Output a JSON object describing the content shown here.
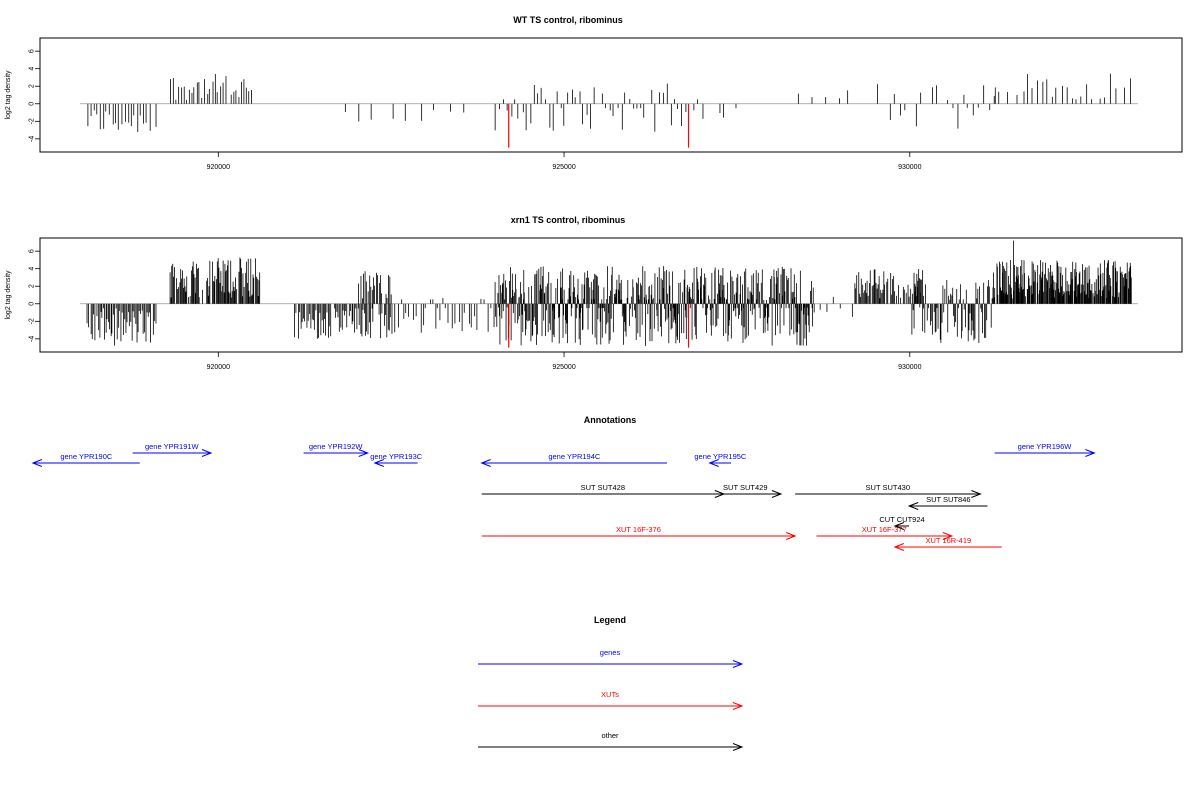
{
  "colors": {
    "gene": "#0000ff",
    "xut": "#ff0000",
    "other": "#000000",
    "baseline": "#999999",
    "highlight": "#ff0000"
  },
  "chart_data": [
    {
      "type": "bar",
      "title": "WT TS control, ribominus",
      "ylabel": "log2 tag density",
      "xlim": [
        918000,
        933300
      ],
      "ylim": [
        -5.5,
        7.5
      ],
      "yticks": [
        -4,
        -2,
        0,
        2,
        4,
        6
      ],
      "yticklabels": [
        "-4",
        "-2",
        "0",
        "2",
        "4",
        "6"
      ],
      "xticks": [
        920000,
        925000,
        930000
      ],
      "xticklabels": [
        "920000",
        "925000",
        "930000"
      ],
      "highlights": [
        {
          "x": 924200,
          "y": -5
        },
        {
          "x": 926800,
          "y": -5
        }
      ],
      "regions": [
        {
          "start": 918100,
          "end": 919100,
          "min": -3.5,
          "max": -0.4,
          "step": 45
        },
        {
          "start": 919300,
          "end": 920500,
          "min": 0.4,
          "max": 3.4,
          "step": 38
        },
        {
          "start": 921100,
          "end": 923800,
          "min": -2.5,
          "max": -0.3,
          "step": 220
        },
        {
          "start": 924000,
          "end": 926900,
          "min": -3.2,
          "max": 2.4,
          "step": 55
        },
        {
          "start": 926900,
          "end": 927500,
          "min": -2.5,
          "max": 1.0,
          "step": 80
        },
        {
          "start": 928200,
          "end": 929500,
          "min": 0.5,
          "max": 3.0,
          "step": 180
        },
        {
          "start": 929700,
          "end": 931200,
          "min": -3.0,
          "max": 2.3,
          "step": 75
        },
        {
          "start": 931200,
          "end": 933200,
          "min": 0.5,
          "max": 3.5,
          "step": 70
        }
      ]
    },
    {
      "type": "bar",
      "title": "xrn1 TS control, ribominus",
      "ylabel": "log2 tag density",
      "xlim": [
        918000,
        933300
      ],
      "ylim": [
        -5.5,
        7.5
      ],
      "yticks": [
        -4,
        -2,
        0,
        2,
        4,
        6
      ],
      "yticklabels": [
        "-4",
        "-2",
        "0",
        "2",
        "4",
        "6"
      ],
      "xticks": [
        920000,
        925000,
        930000
      ],
      "xticklabels": [
        "920000",
        "925000",
        "930000"
      ],
      "highlights": [
        {
          "x": 924200,
          "y": -5
        },
        {
          "x": 926800,
          "y": -5
        }
      ],
      "regions": [
        {
          "start": 918100,
          "end": 919100,
          "min": -4.8,
          "max": -0.5,
          "step": 18
        },
        {
          "start": 919300,
          "end": 920600,
          "min": 0.6,
          "max": 5.3,
          "step": 12
        },
        {
          "start": 921100,
          "end": 922500,
          "min": -4.0,
          "max": -0.4,
          "step": 18
        },
        {
          "start": 922000,
          "end": 922500,
          "min": 0.6,
          "max": 3.8,
          "step": 20
        },
        {
          "start": 922500,
          "end": 924000,
          "min": -3.5,
          "max": 0.8,
          "step": 35
        },
        {
          "start": 924000,
          "end": 928600,
          "min": -4.8,
          "max": 4.3,
          "step": 8
        },
        {
          "start": 928600,
          "end": 929200,
          "min": -2.0,
          "max": 0.8,
          "step": 90
        },
        {
          "start": 929200,
          "end": 930200,
          "min": 0.6,
          "max": 4.0,
          "step": 14
        },
        {
          "start": 930000,
          "end": 931200,
          "min": -4.5,
          "max": 3.0,
          "step": 14
        },
        {
          "start": 931200,
          "end": 933200,
          "min": 0.6,
          "max": 5.0,
          "step": 8
        }
      ],
      "peaks": [
        {
          "x": 931500,
          "y": 7.2
        }
      ]
    }
  ],
  "annotations": {
    "title": "Annotations",
    "xlim": [
      918000,
      933300
    ],
    "items": [
      {
        "label": "gene YPR190C",
        "type": "gene",
        "start": 917900,
        "end": 919400,
        "strand": "-",
        "level": 1
      },
      {
        "label": "gene YPR191W",
        "type": "gene",
        "start": 919300,
        "end": 920400,
        "strand": "+",
        "level": 0
      },
      {
        "label": "gene YPR192W",
        "type": "gene",
        "start": 921700,
        "end": 922600,
        "strand": "+",
        "level": 0
      },
      {
        "label": "gene YPR193C",
        "type": "gene",
        "start": 922700,
        "end": 923300,
        "strand": "-",
        "level": 1
      },
      {
        "label": "gene YPR194C",
        "type": "gene",
        "start": 924200,
        "end": 926800,
        "strand": "-",
        "level": 1
      },
      {
        "label": "gene YPR195C",
        "type": "gene",
        "start": 927400,
        "end": 927700,
        "strand": "-",
        "level": 1
      },
      {
        "label": "gene YPR196W",
        "type": "gene",
        "start": 931400,
        "end": 932800,
        "strand": "+",
        "level": 0
      },
      {
        "label": "SUT SUT428",
        "type": "other",
        "start": 924200,
        "end": 927600,
        "strand": "+",
        "level": 3
      },
      {
        "label": "SUT SUT429",
        "type": "other",
        "start": 927400,
        "end": 928400,
        "strand": "+",
        "level": 3
      },
      {
        "label": "SUT SUT430",
        "type": "other",
        "start": 928600,
        "end": 931200,
        "strand": "+",
        "level": 3
      },
      {
        "label": "SUT SUT846",
        "type": "other",
        "start": 930200,
        "end": 931300,
        "strand": "-",
        "level": 4
      },
      {
        "label": "CUT CUT924",
        "type": "other",
        "start": 930000,
        "end": 930200,
        "strand": "-",
        "level": 5
      },
      {
        "label": "XUT 16F-376",
        "type": "xut",
        "start": 924200,
        "end": 928600,
        "strand": "+",
        "level": 6
      },
      {
        "label": "XUT 16F-377",
        "type": "xut",
        "start": 928900,
        "end": 930800,
        "strand": "+",
        "level": 6
      },
      {
        "label": "XUT 16R-419",
        "type": "xut",
        "start": 930000,
        "end": 931500,
        "strand": "-",
        "level": 7
      }
    ]
  },
  "legend": {
    "title": "Legend",
    "items": [
      {
        "label": "genes",
        "type": "gene"
      },
      {
        "label": "XUTs",
        "type": "xut"
      },
      {
        "label": "other",
        "type": "other"
      }
    ]
  }
}
